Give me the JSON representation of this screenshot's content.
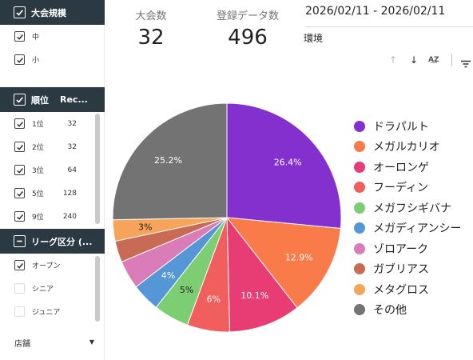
{
  "sidebar": {
    "size_header": {
      "label": "大会規模"
    },
    "size_items": [
      {
        "label": "中"
      },
      {
        "label": "小"
      }
    ],
    "rank_header": {
      "label": "順位",
      "rec": "Rec..."
    },
    "rank_items": [
      {
        "label": "1位",
        "count": "32"
      },
      {
        "label": "2位",
        "count": "32"
      },
      {
        "label": "3位",
        "count": "64"
      },
      {
        "label": "5位",
        "count": "128"
      },
      {
        "label": "9位",
        "count": "240"
      }
    ],
    "league_header": {
      "label": "リーグ区分 (..."
    },
    "league_items": [
      {
        "label": "オープン",
        "checked": true
      },
      {
        "label": "シニア",
        "checked": false
      },
      {
        "label": "ジュニア",
        "checked": false
      }
    ],
    "store": {
      "label": "店舗"
    }
  },
  "scorecards": [
    {
      "label": "大会数",
      "value": "32"
    },
    {
      "label": "登録データ数",
      "value": "496"
    }
  ],
  "date_range": "2026/02/11 - 2026/02/11",
  "environment_label": "環境",
  "chart_data": {
    "type": "pie",
    "labels": [
      "ドラパルト",
      "メガルカリオ",
      "オーロンゲ",
      "フーディン",
      "メガフシギバナ",
      "メガディアンシー",
      "ゾロアーク",
      "ガブリアス",
      "メタグロス",
      "その他"
    ],
    "values": [
      26.4,
      12.9,
      10.1,
      6,
      5,
      4,
      4,
      3,
      3,
      25.2
    ],
    "data_labels": [
      "26.4%",
      "12.9%",
      "10.1%",
      "6%",
      "5%",
      "4%",
      "",
      "",
      "3%",
      "25.2%"
    ],
    "colors": [
      "#8430ce",
      "#fa7b4a",
      "#e83d74",
      "#f05e5e",
      "#7dcd73",
      "#5496d6",
      "#d97cb8",
      "#c96a55",
      "#f6a45a",
      "#737373"
    ],
    "legend_position": "right"
  }
}
